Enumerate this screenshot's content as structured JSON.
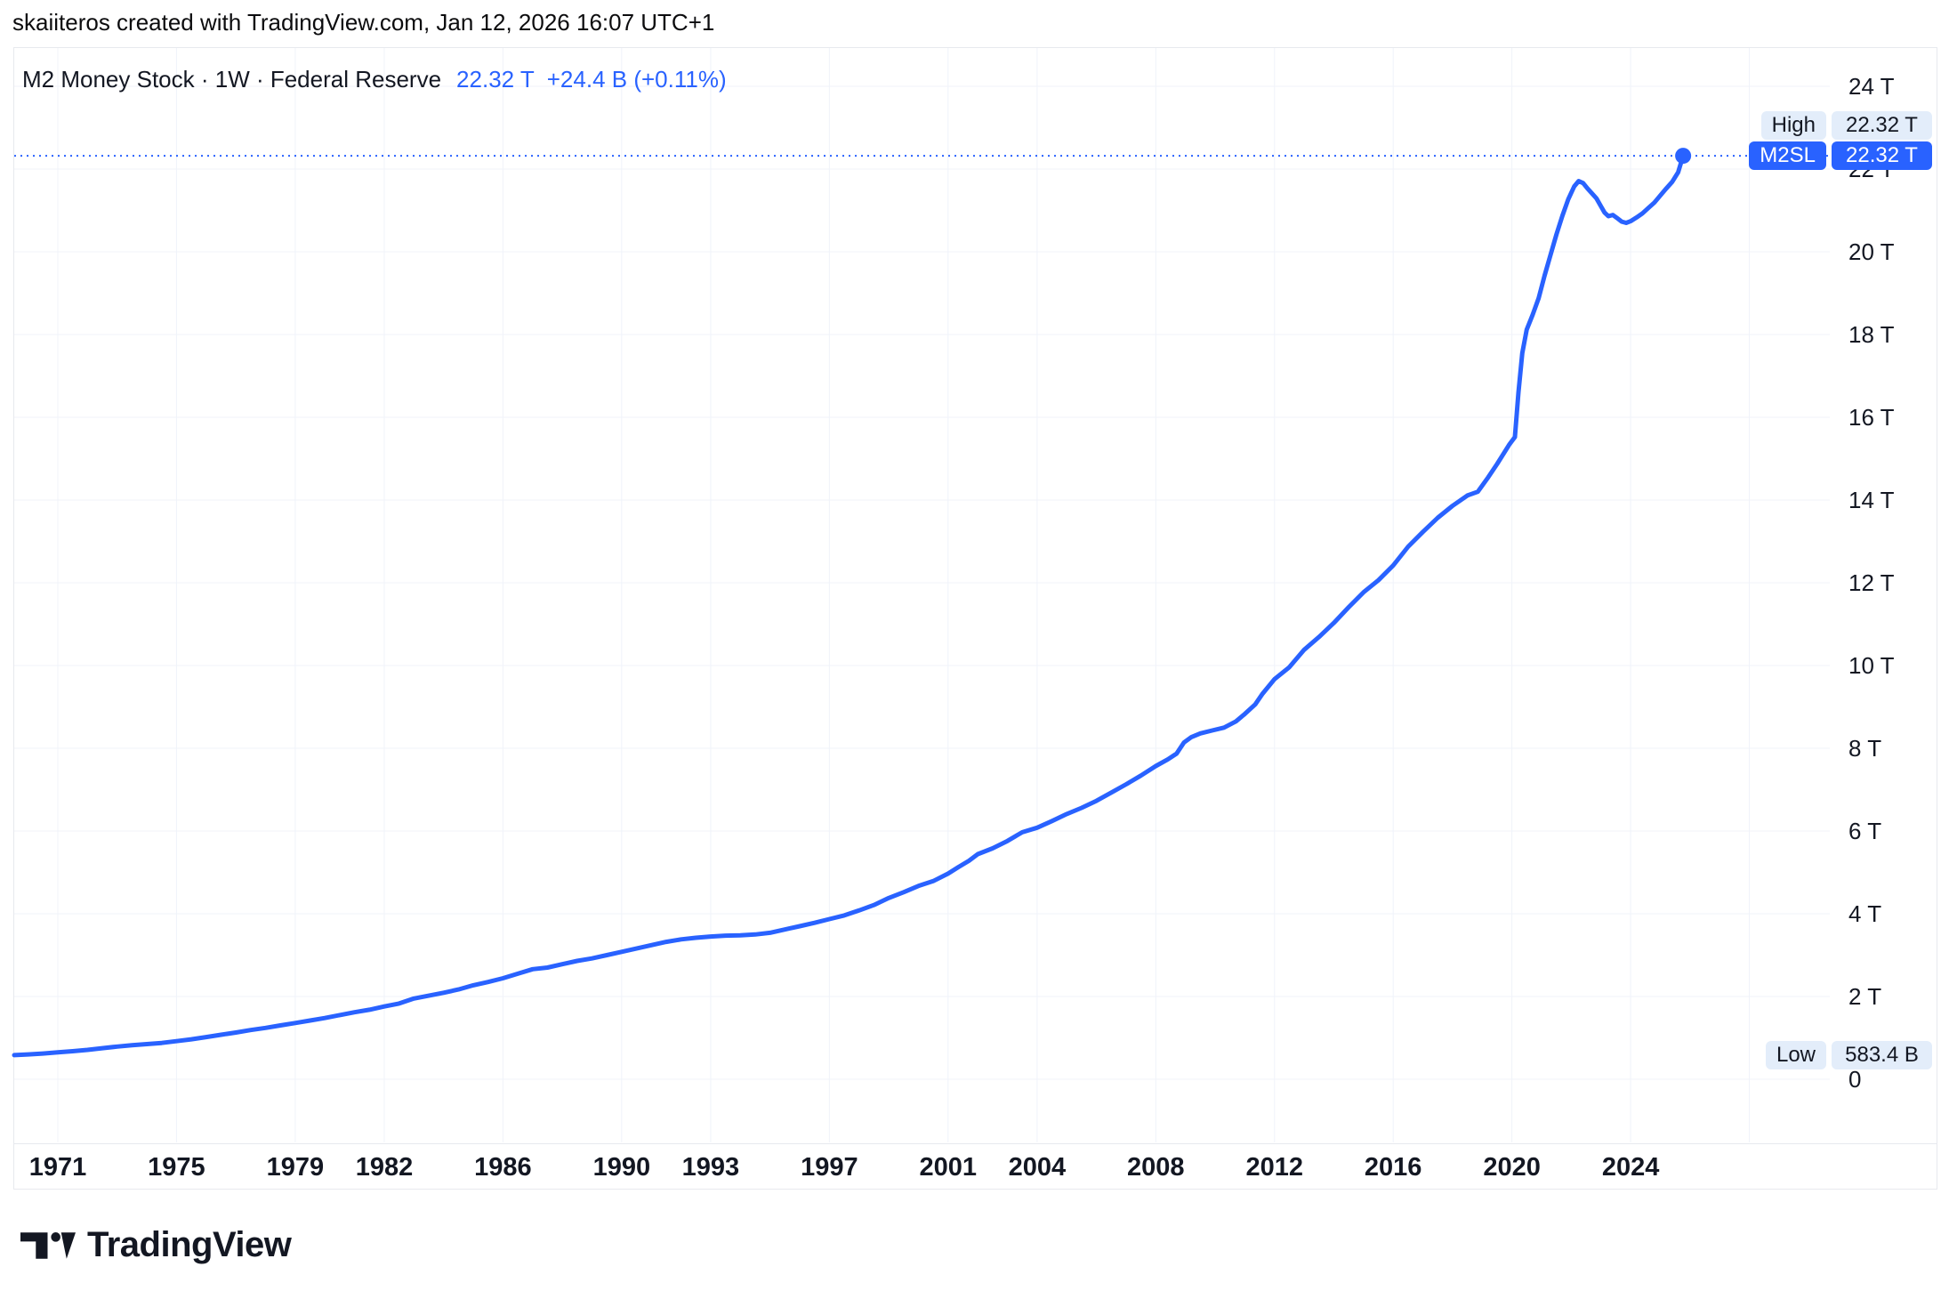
{
  "header": {
    "attribution": "skaiiteros created with TradingView.com, Jan 12, 2026 16:07 UTC+1"
  },
  "legend": {
    "title": "M2 Money Stock · 1W · Federal Reserve",
    "last_value": "22.32 T",
    "change": "+24.4 B (+0.11%)"
  },
  "badges": {
    "high_label": "High",
    "high_value": "22.32 T",
    "series_label": "M2SL",
    "series_value": "22.32 T",
    "low_label": "Low",
    "low_value": "583.4 B"
  },
  "logo": {
    "brand": "TradingView"
  },
  "colors": {
    "accent": "#2962FF",
    "chip_light": "#E3EDFA",
    "grid": "#F0F3FA",
    "frame_border": "#E7E9EE",
    "text_dark": "#131722"
  },
  "chart_data": {
    "type": "line",
    "symbol": "M2SL",
    "title": "M2 Money Stock",
    "timeframe": "1W",
    "source": "Federal Reserve",
    "unit": "USD, trillions",
    "legend_position": "top-left",
    "grid": true,
    "ylim": [
      0,
      25.0
    ],
    "y_ticks": [
      24,
      22,
      20,
      18,
      16,
      14,
      12,
      10,
      8,
      6,
      4,
      2,
      0
    ],
    "y_tick_suffix": " T",
    "x_ticks": [
      1971,
      1975,
      1979,
      1982,
      1986,
      1990,
      1993,
      1997,
      2001,
      2004,
      2008,
      2012,
      2016,
      2020,
      2024
    ],
    "x_grid_extra_years": [
      2028
    ],
    "high": 22.32,
    "low": 0.5834,
    "last": 22.32,
    "points": [
      [
        1969.53,
        0.583
      ],
      [
        1970.0,
        0.601
      ],
      [
        1970.5,
        0.622
      ],
      [
        1971.0,
        0.65
      ],
      [
        1971.5,
        0.677
      ],
      [
        1972.0,
        0.71
      ],
      [
        1972.5,
        0.75
      ],
      [
        1973.0,
        0.79
      ],
      [
        1973.5,
        0.822
      ],
      [
        1974.0,
        0.85
      ],
      [
        1974.5,
        0.878
      ],
      [
        1975.0,
        0.92
      ],
      [
        1975.5,
        0.966
      ],
      [
        1976.0,
        1.02
      ],
      [
        1976.5,
        1.075
      ],
      [
        1977.0,
        1.13
      ],
      [
        1977.5,
        1.19
      ],
      [
        1978.0,
        1.24
      ],
      [
        1978.5,
        1.3
      ],
      [
        1979.0,
        1.36
      ],
      [
        1979.5,
        1.42
      ],
      [
        1980.0,
        1.48
      ],
      [
        1980.5,
        1.55
      ],
      [
        1981.0,
        1.62
      ],
      [
        1981.5,
        1.68
      ],
      [
        1982.0,
        1.76
      ],
      [
        1982.5,
        1.83
      ],
      [
        1983.0,
        1.95
      ],
      [
        1983.5,
        2.02
      ],
      [
        1984.0,
        2.09
      ],
      [
        1984.5,
        2.17
      ],
      [
        1985.0,
        2.27
      ],
      [
        1985.5,
        2.35
      ],
      [
        1986.0,
        2.44
      ],
      [
        1986.5,
        2.55
      ],
      [
        1987.0,
        2.66
      ],
      [
        1987.5,
        2.7
      ],
      [
        1988.0,
        2.78
      ],
      [
        1988.5,
        2.86
      ],
      [
        1989.0,
        2.92
      ],
      [
        1989.5,
        3.0
      ],
      [
        1990.0,
        3.08
      ],
      [
        1990.5,
        3.16
      ],
      [
        1991.0,
        3.24
      ],
      [
        1991.5,
        3.32
      ],
      [
        1992.0,
        3.38
      ],
      [
        1992.5,
        3.42
      ],
      [
        1993.0,
        3.45
      ],
      [
        1993.5,
        3.47
      ],
      [
        1994.0,
        3.48
      ],
      [
        1994.5,
        3.5
      ],
      [
        1995.0,
        3.54
      ],
      [
        1995.5,
        3.62
      ],
      [
        1996.0,
        3.7
      ],
      [
        1996.5,
        3.78
      ],
      [
        1997.0,
        3.87
      ],
      [
        1997.5,
        3.96
      ],
      [
        1998.0,
        4.08
      ],
      [
        1998.5,
        4.21
      ],
      [
        1999.0,
        4.38
      ],
      [
        1999.5,
        4.52
      ],
      [
        2000.0,
        4.67
      ],
      [
        2000.5,
        4.79
      ],
      [
        2001.0,
        4.97
      ],
      [
        2001.35,
        5.13
      ],
      [
        2001.7,
        5.28
      ],
      [
        2002.0,
        5.44
      ],
      [
        2002.5,
        5.58
      ],
      [
        2003.0,
        5.76
      ],
      [
        2003.5,
        5.97
      ],
      [
        2004.0,
        6.08
      ],
      [
        2004.5,
        6.24
      ],
      [
        2005.0,
        6.41
      ],
      [
        2005.5,
        6.56
      ],
      [
        2006.0,
        6.73
      ],
      [
        2006.5,
        6.93
      ],
      [
        2007.0,
        7.13
      ],
      [
        2007.5,
        7.34
      ],
      [
        2008.0,
        7.57
      ],
      [
        2008.4,
        7.73
      ],
      [
        2008.7,
        7.87
      ],
      [
        2008.95,
        8.14
      ],
      [
        2009.2,
        8.27
      ],
      [
        2009.5,
        8.36
      ],
      [
        2009.9,
        8.43
      ],
      [
        2010.3,
        8.5
      ],
      [
        2010.7,
        8.65
      ],
      [
        2011.0,
        8.83
      ],
      [
        2011.35,
        9.06
      ],
      [
        2011.6,
        9.32
      ],
      [
        2012.0,
        9.67
      ],
      [
        2012.5,
        9.96
      ],
      [
        2013.0,
        10.38
      ],
      [
        2013.5,
        10.69
      ],
      [
        2014.0,
        11.03
      ],
      [
        2014.5,
        11.41
      ],
      [
        2015.0,
        11.77
      ],
      [
        2015.5,
        12.06
      ],
      [
        2016.0,
        12.42
      ],
      [
        2016.5,
        12.87
      ],
      [
        2017.0,
        13.23
      ],
      [
        2017.5,
        13.57
      ],
      [
        2018.0,
        13.86
      ],
      [
        2018.5,
        14.11
      ],
      [
        2018.85,
        14.2
      ],
      [
        2019.2,
        14.55
      ],
      [
        2019.5,
        14.87
      ],
      [
        2019.92,
        15.35
      ],
      [
        2020.1,
        15.52
      ],
      [
        2020.22,
        16.6
      ],
      [
        2020.35,
        17.55
      ],
      [
        2020.5,
        18.12
      ],
      [
        2020.7,
        18.48
      ],
      [
        2020.9,
        18.88
      ],
      [
        2021.1,
        19.42
      ],
      [
        2021.3,
        19.92
      ],
      [
        2021.5,
        20.42
      ],
      [
        2021.7,
        20.87
      ],
      [
        2021.9,
        21.27
      ],
      [
        2022.1,
        21.58
      ],
      [
        2022.25,
        21.71
      ],
      [
        2022.4,
        21.66
      ],
      [
        2022.55,
        21.53
      ],
      [
        2022.7,
        21.41
      ],
      [
        2022.85,
        21.29
      ],
      [
        2023.0,
        21.1
      ],
      [
        2023.12,
        20.95
      ],
      [
        2023.25,
        20.86
      ],
      [
        2023.4,
        20.89
      ],
      [
        2023.55,
        20.81
      ],
      [
        2023.7,
        20.73
      ],
      [
        2023.85,
        20.7
      ],
      [
        2024.0,
        20.74
      ],
      [
        2024.2,
        20.83
      ],
      [
        2024.4,
        20.93
      ],
      [
        2024.6,
        21.06
      ],
      [
        2024.8,
        21.19
      ],
      [
        2025.0,
        21.36
      ],
      [
        2025.2,
        21.53
      ],
      [
        2025.4,
        21.69
      ],
      [
        2025.6,
        21.92
      ],
      [
        2025.77,
        22.32
      ]
    ]
  }
}
